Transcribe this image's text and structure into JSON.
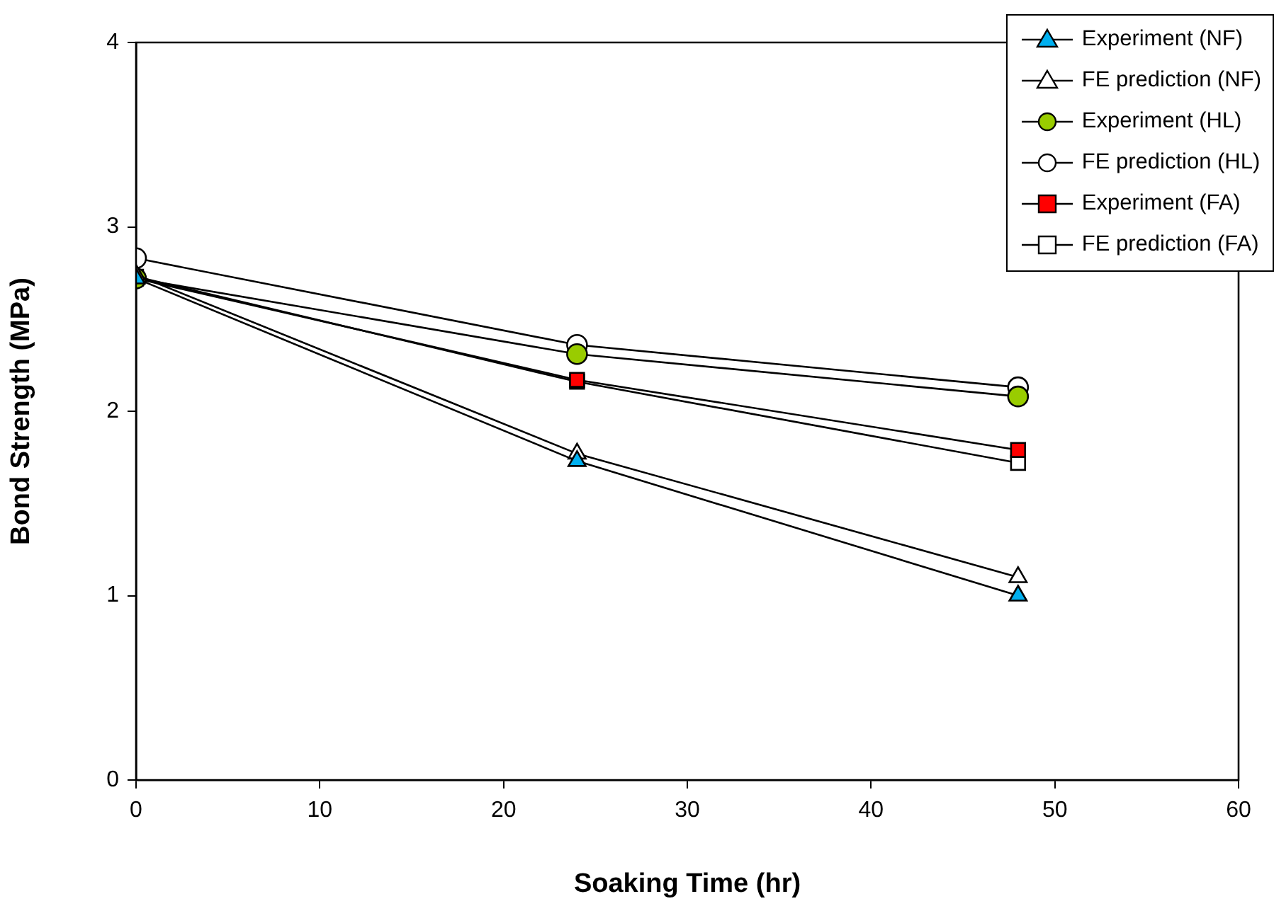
{
  "chart_data": {
    "type": "line",
    "xlabel": "Soaking Time (hr)",
    "ylabel": "Bond Strength (MPa)",
    "x": [
      0,
      24,
      48
    ],
    "xlim": [
      0,
      60
    ],
    "xticks": [
      0,
      10,
      20,
      30,
      40,
      50,
      60
    ],
    "ylim": [
      0,
      4
    ],
    "yticks": [
      0,
      1,
      2,
      3,
      4
    ],
    "grid": false,
    "legend": "top right",
    "series": [
      {
        "name": "Experiment (NF)",
        "color": "#00b0f0",
        "marker": "triangle",
        "values": [
          2.72,
          1.73,
          1.0
        ]
      },
      {
        "name": "FE prediction (NF)",
        "color": "#ffffff",
        "marker": "triangle",
        "values": [
          2.74,
          1.77,
          1.1
        ]
      },
      {
        "name": "Experiment (HL)",
        "color": "#99cc00",
        "marker": "circle",
        "values": [
          2.72,
          2.31,
          2.08
        ]
      },
      {
        "name": "FE prediction (HL)",
        "color": "#ffffff",
        "marker": "circle",
        "values": [
          2.83,
          2.36,
          2.13
        ]
      },
      {
        "name": "Experiment (FA)",
        "color": "#ff0000",
        "marker": "square",
        "values": [
          2.72,
          2.17,
          1.79
        ]
      },
      {
        "name": "FE prediction (FA)",
        "color": "#ffffff",
        "marker": "square",
        "values": [
          2.73,
          2.16,
          1.72
        ]
      }
    ]
  }
}
